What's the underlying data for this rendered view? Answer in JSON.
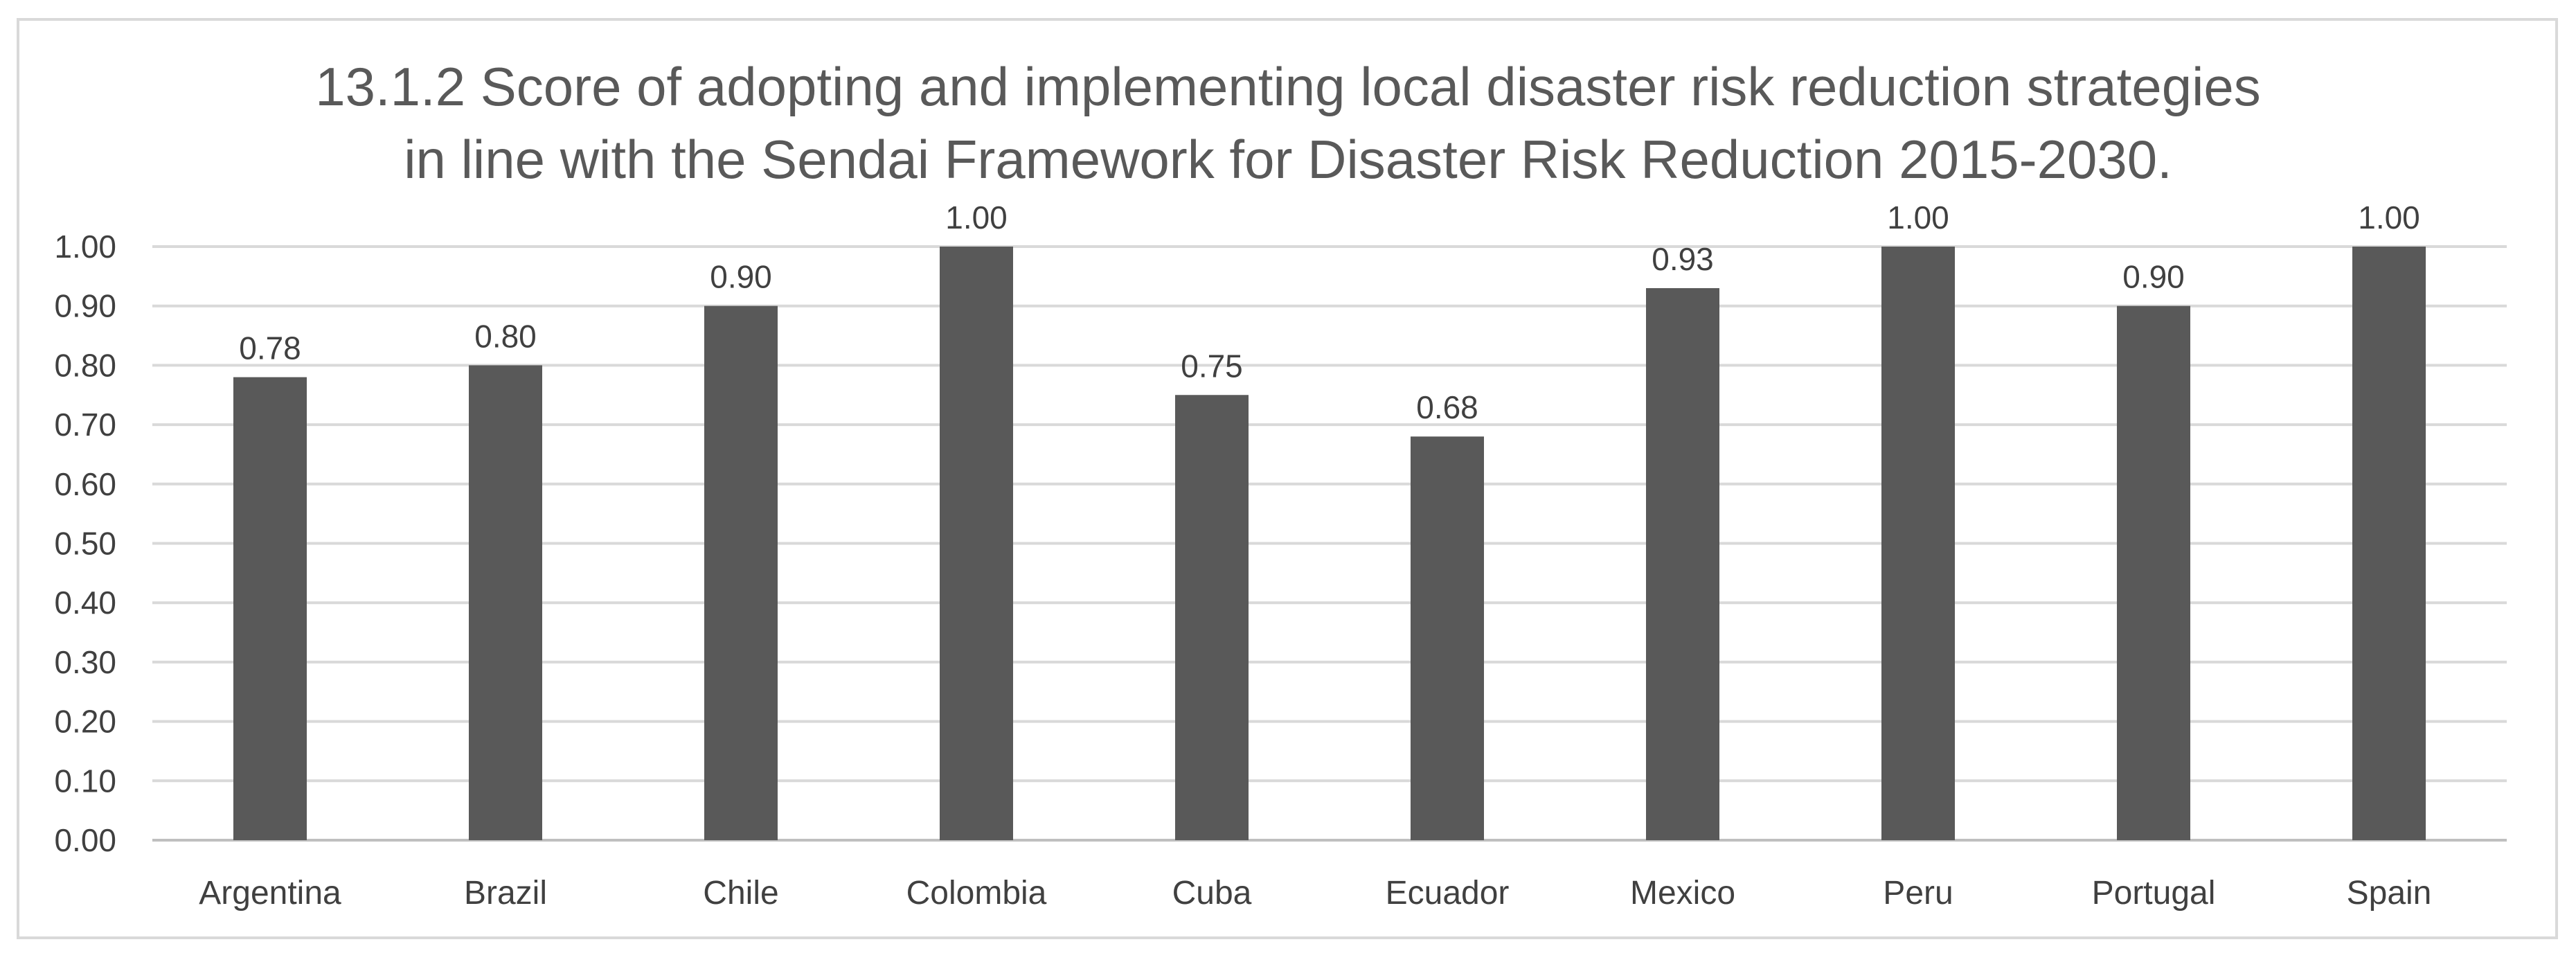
{
  "chart_data": {
    "type": "bar",
    "title_lines": [
      "13.1.2 Score of adopting and implementing local disaster risk reduction strategies",
      "in line with the Sendai Framework for Disaster Risk Reduction 2015-2030."
    ],
    "categories": [
      "Argentina",
      "Brazil",
      "Chile",
      "Colombia",
      "Cuba",
      "Ecuador",
      "Mexico",
      "Peru",
      "Portugal",
      "Spain"
    ],
    "values": [
      0.78,
      0.8,
      0.9,
      1.0,
      0.75,
      0.68,
      0.93,
      1.0,
      0.9,
      1.0
    ],
    "data_labels": [
      "0.78",
      "0.80",
      "0.90",
      "1.00",
      "0.75",
      "0.68",
      "0.93",
      "1.00",
      "0.90",
      "1.00"
    ],
    "y_ticks": [
      "0.00",
      "0.10",
      "0.20",
      "0.30",
      "0.40",
      "0.50",
      "0.60",
      "0.70",
      "0.80",
      "0.90",
      "1.00"
    ],
    "ylim": [
      0,
      1
    ],
    "xlabel": "",
    "ylabel": "",
    "grid": true,
    "legend": "none",
    "bar_color": "#595959"
  }
}
